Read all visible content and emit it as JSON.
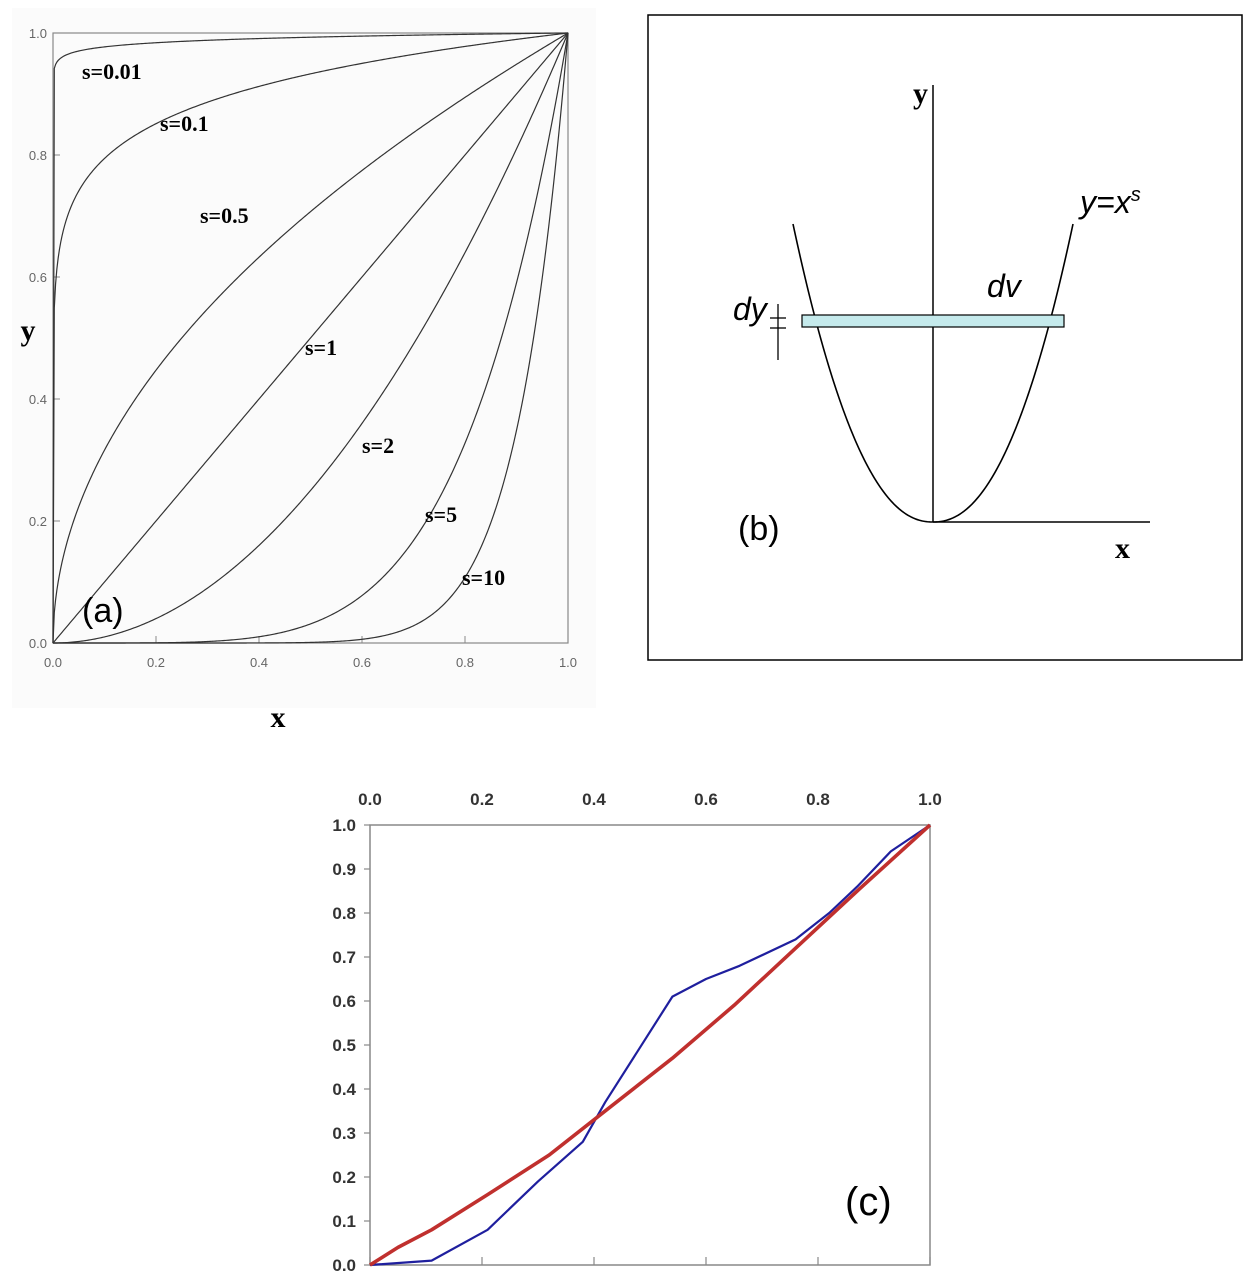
{
  "chart_data": [
    {
      "type": "line",
      "panel_label": "(a)",
      "xlabel": "x",
      "ylabel": "y",
      "xlim": [
        0,
        1
      ],
      "ylim": [
        0,
        1
      ],
      "xticks": [
        "0.0",
        "0.2",
        "0.4",
        "0.6",
        "0.8",
        "1.0"
      ],
      "yticks": [
        "0.0",
        "0.2",
        "0.4",
        "0.6",
        "0.8",
        "1.0"
      ],
      "function": "y = x^s",
      "series": [
        {
          "name": "s=0.01",
          "s": 0.01
        },
        {
          "name": "s=0.1",
          "s": 0.1
        },
        {
          "name": "s=0.5",
          "s": 0.5
        },
        {
          "name": "s=1",
          "s": 1
        },
        {
          "name": "s=2",
          "s": 2
        },
        {
          "name": "s=5",
          "s": 5
        },
        {
          "name": "s=10",
          "s": 10
        }
      ],
      "grid": false
    },
    {
      "type": "diagram",
      "panel_label": "(b)",
      "xlabel": "x",
      "ylabel": "y",
      "curve_label": "y=x",
      "curve_label_sup": "s",
      "strip_label": "dv",
      "width_label": "dy",
      "strip_color": "#c5eaec"
    },
    {
      "type": "line",
      "panel_label": "(c)",
      "xlim": [
        0,
        1
      ],
      "ylim": [
        0,
        1
      ],
      "xticks": [
        "0.0",
        "0.2",
        "0.4",
        "0.6",
        "0.8",
        "1.0"
      ],
      "yticks": [
        "0.0",
        "0.1",
        "0.2",
        "0.3",
        "0.4",
        "0.5",
        "0.6",
        "0.7",
        "0.8",
        "0.9",
        "1.0"
      ],
      "series": [
        {
          "color": "#1f1f9e",
          "x": [
            0,
            0.11,
            0.21,
            0.3,
            0.38,
            0.42,
            0.54,
            0.6,
            0.66,
            0.76,
            0.82,
            0.87,
            0.93,
            1.0
          ],
          "y": [
            0,
            0.01,
            0.08,
            0.19,
            0.28,
            0.37,
            0.61,
            0.65,
            0.68,
            0.74,
            0.8,
            0.86,
            0.94,
            1.0
          ]
        },
        {
          "color": "#c0302e",
          "x": [
            0,
            0.05,
            0.11,
            0.21,
            0.32,
            0.43,
            0.54,
            0.65,
            0.76,
            0.87,
            1.0
          ],
          "y": [
            0,
            0.04,
            0.08,
            0.16,
            0.25,
            0.36,
            0.47,
            0.59,
            0.72,
            0.85,
            1.0
          ]
        }
      ],
      "grid": false
    }
  ]
}
